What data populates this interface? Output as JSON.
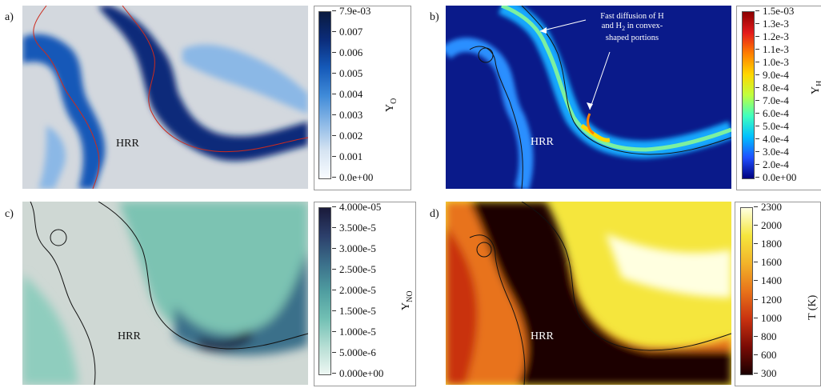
{
  "panels": {
    "a": {
      "letter": "a)",
      "hrr_label": "HRR",
      "quantity": "Y",
      "quantity_sub": "O",
      "ticks": [
        "7.9e-03",
        "0.007",
        "0.006",
        "0.005",
        "0.004",
        "0.003",
        "0.002",
        "0.001",
        "0.0e+00"
      ],
      "colormap": [
        "#0a1a3f",
        "#0b2c7a",
        "#1559b8",
        "#3f8ad8",
        "#8bb8e6",
        "#d6e4f2",
        "#f8fbff"
      ]
    },
    "b": {
      "letter": "b)",
      "hrr_label": "HRR",
      "quantity": "Y",
      "quantity_sub": "H",
      "ticks": [
        "1.5e-03",
        "1.3e-3",
        "1.2e-3",
        "1.1e-3",
        "1.0e-3",
        "9.0e-4",
        "8.0e-4",
        "7.0e-4",
        "6.0e-4",
        "5.0e-4",
        "4.0e-4",
        "3.0e-4",
        "2.0e-4",
        "0.0e+00"
      ],
      "colormap": [
        "#8b0000",
        "#e31a1c",
        "#ff7f00",
        "#ffd700",
        "#bfff3f",
        "#3fffbf",
        "#00bfff",
        "#1f4fff",
        "#00007f"
      ],
      "annotation": [
        "Fast diffusion of H",
        "and H",
        "2",
        " in convex-",
        "shaped portions"
      ]
    },
    "c": {
      "letter": "c)",
      "hrr_label": "HRR",
      "quantity": "Y",
      "quantity_sub": "NO",
      "ticks": [
        "4.000e-05",
        "3.500e-5",
        "3.000e-5",
        "2.500e-5",
        "2.000e-5",
        "1.500e-5",
        "1.000e-5",
        "5.000e-6",
        "0.000e+00"
      ],
      "colormap": [
        "#1a1a3a",
        "#2c3f6b",
        "#3b6f8a",
        "#4f9da0",
        "#72c0b4",
        "#b6ded4",
        "#eef7f3"
      ]
    },
    "d": {
      "letter": "d)",
      "hrr_label": "HRR",
      "quantity": "T (K)",
      "quantity_sub": "",
      "ticks": [
        "2300",
        "2000",
        "1800",
        "1600",
        "1400",
        "1200",
        "1000",
        "800",
        "600",
        "300"
      ],
      "colormap": [
        "#ffffe0",
        "#f5e63d",
        "#f2b32a",
        "#e8731a",
        "#c93210",
        "#7a0b05",
        "#1a0000"
      ]
    }
  },
  "colors": {
    "bg_a": "#d3d8de",
    "bg_c": "#cfd8d4",
    "hrr_line_a": "#cc2b1d",
    "contour": "#111111"
  }
}
